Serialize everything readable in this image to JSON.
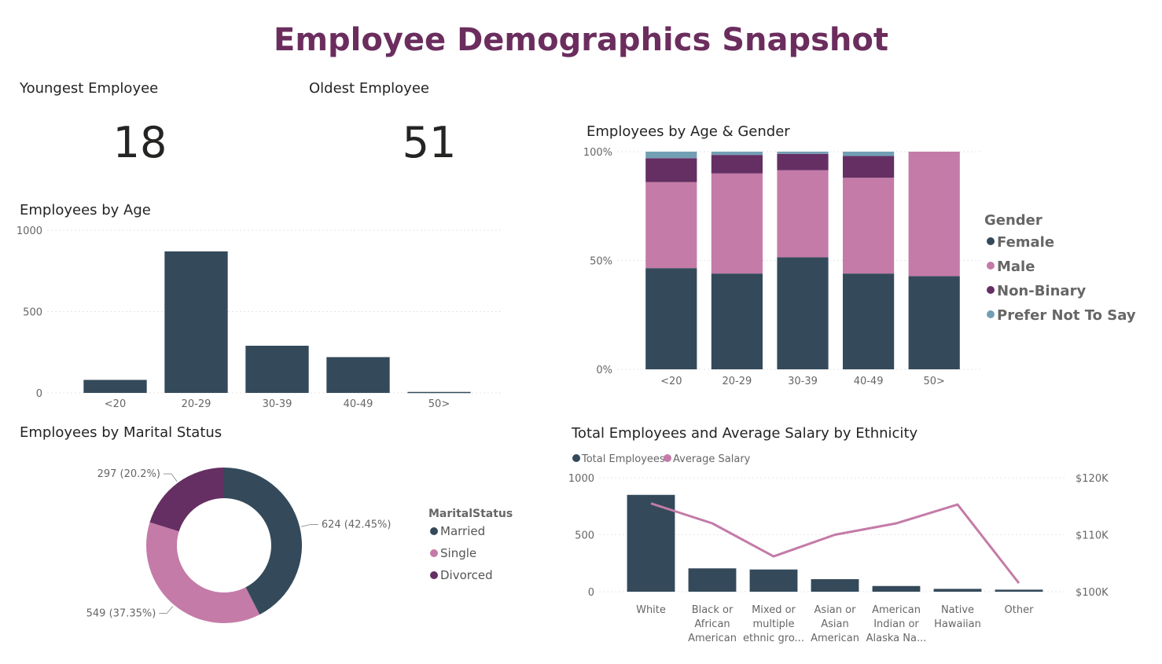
{
  "page": {
    "title": "Employee Demographics Snapshot"
  },
  "colors": {
    "title": "#6b2d5e",
    "female": "#344a5b",
    "male": "#c47ba8",
    "nonbinary": "#652f63",
    "prefer_not": "#739fb5",
    "married": "#344a5b",
    "single": "#c47ba8",
    "divorced": "#652f63",
    "total_employees": "#344a5b",
    "average_salary": "#c47ba8"
  },
  "kpis": {
    "youngest": {
      "label": "Youngest Employee",
      "value": "18"
    },
    "oldest": {
      "label": "Oldest Employee",
      "value": "51"
    }
  },
  "chart_data": [
    {
      "id": "employees_by_age",
      "type": "bar",
      "title": "Employees by Age",
      "categories": [
        "<20",
        "20-29",
        "30-39",
        "40-49",
        "50>"
      ],
      "values": [
        80,
        870,
        290,
        220,
        6
      ],
      "ylim": [
        0,
        1000
      ],
      "yticks": [
        "0",
        "500",
        "1000"
      ],
      "ytick_values": [
        0,
        500,
        1000
      ],
      "grid": true
    },
    {
      "id": "employees_by_age_gender",
      "type": "bar",
      "stacked": "100%",
      "title": "Employees by Age & Gender",
      "categories": [
        "<20",
        "20-29",
        "30-39",
        "40-49",
        "50>"
      ],
      "series": [
        {
          "name": "Female",
          "values": [
            46.5,
            44,
            51.5,
            44,
            42.8
          ]
        },
        {
          "name": "Male",
          "values": [
            39.5,
            46,
            40,
            44,
            57.2
          ]
        },
        {
          "name": "Non-Binary",
          "values": [
            11,
            8.5,
            7.5,
            10,
            0
          ]
        },
        {
          "name": "Prefer Not To Say",
          "values": [
            3,
            1.5,
            1,
            2,
            0
          ]
        }
      ],
      "ylim": [
        0,
        100
      ],
      "yticks": [
        "0%",
        "50%",
        "100%"
      ],
      "ytick_values": [
        0,
        50,
        100
      ],
      "legend": {
        "title": "Gender",
        "position": "right"
      },
      "grid": true
    },
    {
      "id": "employees_by_marital_status",
      "type": "pie",
      "donut": true,
      "title": "Employees by Marital Status",
      "series": [
        {
          "name": "Married",
          "value": 624,
          "label": "624 (42.45%)"
        },
        {
          "name": "Single",
          "value": 549,
          "label": "549 (37.35%)"
        },
        {
          "name": "Divorced",
          "value": 297,
          "label": "297 (20.2%)"
        }
      ],
      "legend": {
        "title": "MaritalStatus",
        "position": "right"
      }
    },
    {
      "id": "employees_salary_by_ethnicity",
      "type": "bar",
      "combo": "bar+line",
      "title": "Total Employees and Average Salary by Ethnicity",
      "categories": [
        [
          "White"
        ],
        [
          "Black or",
          "African",
          "American"
        ],
        [
          "Mixed or",
          "multiple",
          "ethnic gro..."
        ],
        [
          "Asian or",
          "Asian",
          "American"
        ],
        [
          "American",
          "Indian or",
          "Alaska Na..."
        ],
        [
          "Native",
          "Hawaiian"
        ],
        [
          "Other"
        ]
      ],
      "series": [
        {
          "name": "Total Employees",
          "type": "bar",
          "axis": "left",
          "values": [
            850,
            205,
            195,
            110,
            50,
            25,
            18
          ]
        },
        {
          "name": "Average Salary",
          "type": "line",
          "axis": "right",
          "values": [
            115500,
            112000,
            106200,
            110000,
            112000,
            115300,
            101500
          ]
        }
      ],
      "ylim_left": [
        0,
        1000
      ],
      "yticks_left": [
        "0",
        "500",
        "1000"
      ],
      "ytick_values_left": [
        0,
        500,
        1000
      ],
      "ylim_right": [
        100000,
        120000
      ],
      "yticks_right": [
        "$100K",
        "$110K",
        "$120K"
      ],
      "ytick_values_right": [
        100000,
        110000,
        120000
      ],
      "legend": {
        "position": "top-left"
      },
      "grid": true
    }
  ]
}
